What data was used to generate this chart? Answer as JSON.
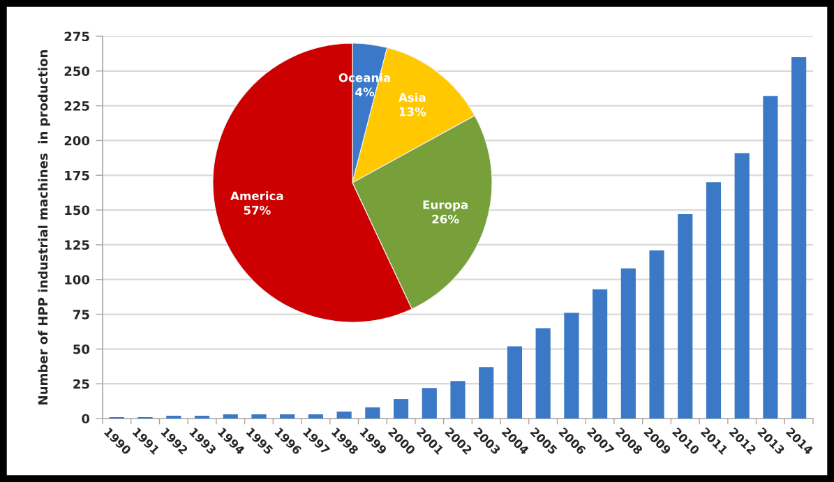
{
  "chart_data": [
    {
      "type": "bar",
      "ylabel": "Number of HPP industrial machines  in production",
      "categories": [
        "1990",
        "1991",
        "1992",
        "1993",
        "1994",
        "1995",
        "1996",
        "1997",
        "1998",
        "1999",
        "2000",
        "2001",
        "2002",
        "2003",
        "2004",
        "2005",
        "2006",
        "2007",
        "2008",
        "2009",
        "2010",
        "2011",
        "2012",
        "2013",
        "2014"
      ],
      "values": [
        1,
        1,
        2,
        2,
        3,
        3,
        3,
        3,
        5,
        8,
        14,
        22,
        27,
        37,
        52,
        65,
        76,
        93,
        108,
        121,
        147,
        170,
        191,
        232,
        260
      ],
      "color": "#3b78c6",
      "ylim": [
        0,
        275
      ],
      "yticks": [
        0,
        25,
        50,
        75,
        100,
        125,
        150,
        175,
        200,
        225,
        250,
        275
      ],
      "grid": "y"
    },
    {
      "type": "pie",
      "categories": [
        "Oceania",
        "Asia",
        "Europa",
        "America"
      ],
      "values": [
        4,
        13,
        26,
        57
      ],
      "colors": [
        "#3a78c9",
        "#ffc800",
        "#77a03a",
        "#cc0000"
      ],
      "value_labels": [
        "4%",
        "13%",
        "26%",
        "57%"
      ]
    }
  ]
}
